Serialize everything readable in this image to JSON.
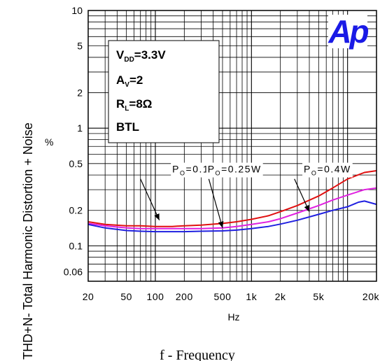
{
  "chart_data": {
    "type": "line",
    "ylabel": "THD+N- Total Harmonic Distortion + Noise",
    "y_unit": "%",
    "xlabel": "Hz",
    "x_scale": "log",
    "y_scale": "log",
    "xlim": [
      20,
      20000
    ],
    "ylim": [
      0.05,
      10
    ],
    "grid": true,
    "x_ticks": [
      {
        "value": 20,
        "label": "20"
      },
      {
        "value": 50,
        "label": "50"
      },
      {
        "value": 100,
        "label": "100"
      },
      {
        "value": 200,
        "label": "200"
      },
      {
        "value": 500,
        "label": "500"
      },
      {
        "value": 1000,
        "label": "1k"
      },
      {
        "value": 2000,
        "label": "2k"
      },
      {
        "value": 5000,
        "label": "5k"
      },
      {
        "value": 20000,
        "label": "20k"
      }
    ],
    "y_ticks": [
      {
        "value": 10,
        "label": "10"
      },
      {
        "value": 5,
        "label": "5"
      },
      {
        "value": 2,
        "label": "2"
      },
      {
        "value": 1,
        "label": "1"
      },
      {
        "value": 0.5,
        "label": "0.5"
      },
      {
        "value": 0.2,
        "label": "0.2"
      },
      {
        "value": 0.1,
        "label": "0.1"
      },
      {
        "value": 0.06,
        "label": "0.06"
      }
    ],
    "conditions": [
      {
        "main": "V",
        "sub": "DD",
        "rest": "=3.3V"
      },
      {
        "main": "A",
        "sub": "V",
        "rest": "=2"
      },
      {
        "main": "R",
        "sub": "L",
        "rest": "=8Ω"
      },
      {
        "main": "BTL",
        "sub": "",
        "rest": ""
      }
    ],
    "logo": "Ap",
    "series": [
      {
        "color": "#e01010",
        "x": [
          20,
          30,
          50,
          70,
          100,
          150,
          200,
          300,
          500,
          700,
          1000,
          1500,
          2000,
          3000,
          5000,
          7000,
          10000,
          15000,
          20000
        ],
        "y": [
          0.16,
          0.152,
          0.148,
          0.148,
          0.146,
          0.146,
          0.148,
          0.15,
          0.155,
          0.16,
          0.168,
          0.18,
          0.195,
          0.22,
          0.265,
          0.31,
          0.37,
          0.42,
          0.435
        ]
      },
      {
        "color": "#e020e0",
        "x": [
          20,
          30,
          50,
          70,
          100,
          150,
          200,
          300,
          500,
          700,
          1000,
          1500,
          2000,
          3000,
          5000,
          7000,
          10000,
          15000,
          20000
        ],
        "y": [
          0.155,
          0.148,
          0.142,
          0.14,
          0.14,
          0.14,
          0.14,
          0.14,
          0.142,
          0.146,
          0.152,
          0.16,
          0.17,
          0.19,
          0.22,
          0.245,
          0.27,
          0.3,
          0.31
        ]
      },
      {
        "color": "#2020e0",
        "x": [
          20,
          30,
          50,
          70,
          100,
          150,
          200,
          300,
          500,
          700,
          1000,
          1500,
          2000,
          3000,
          5000,
          7000,
          10000,
          13000,
          15000,
          20000
        ],
        "y": [
          0.152,
          0.142,
          0.135,
          0.133,
          0.132,
          0.132,
          0.132,
          0.133,
          0.134,
          0.136,
          0.14,
          0.146,
          0.153,
          0.165,
          0.185,
          0.2,
          0.215,
          0.235,
          0.24,
          0.225
        ]
      }
    ],
    "annotations": [
      {
        "label_main": "P",
        "label_sub": "O",
        "label_rest": "=0.1W",
        "text_x": 150,
        "text_y": 0.42,
        "tail_x": 70,
        "tail_y": 0.37,
        "head_x": 110,
        "head_y": 0.165
      },
      {
        "label_main": "P",
        "label_sub": "O",
        "label_rest": "=0.25W",
        "text_x": 350,
        "text_y": 0.42,
        "tail_x": 360,
        "tail_y": 0.37,
        "head_x": 500,
        "head_y": 0.142
      },
      {
        "label_main": "P",
        "label_sub": "O",
        "label_rest": "=0.4W",
        "text_x": 3500,
        "text_y": 0.42,
        "tail_x": 2800,
        "tail_y": 0.37,
        "head_x": 4000,
        "head_y": 0.195
      }
    ],
    "footer": "f - Frequency"
  }
}
